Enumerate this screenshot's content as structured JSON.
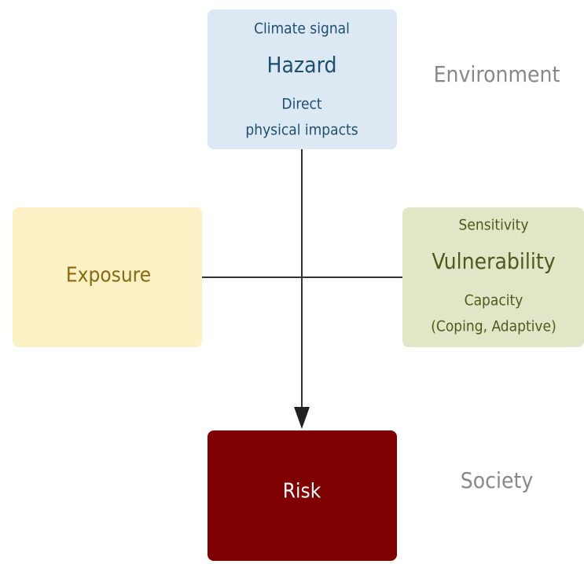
{
  "nodes": [
    {
      "id": "hazard",
      "lines": [
        "Climate signal",
        "Hazard",
        "Direct",
        "physical impacts"
      ]
    },
    {
      "id": "exposure",
      "lines": [
        "Exposure"
      ]
    },
    {
      "id": "vulnerability",
      "lines": [
        "Sensitivity",
        "Vulnerability",
        "Capacity",
        "(Coping, Adaptive)"
      ]
    },
    {
      "id": "risk",
      "lines": [
        "Risk"
      ]
    }
  ],
  "side_labels": [
    "Environment",
    "Society"
  ]
}
